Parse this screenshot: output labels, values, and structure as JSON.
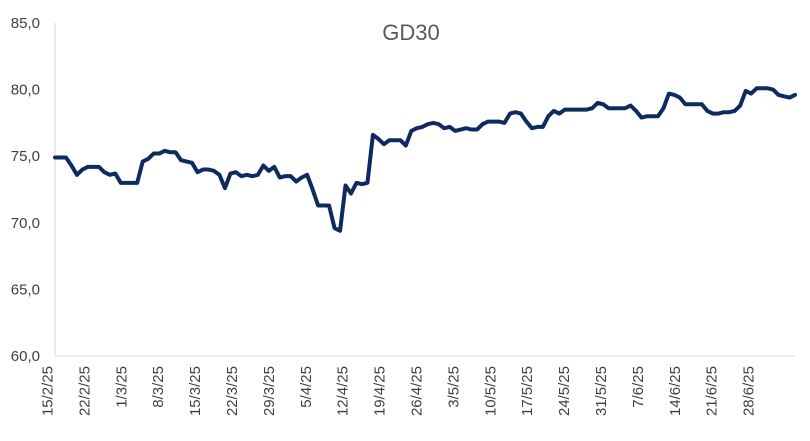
{
  "chart_data": {
    "type": "line",
    "title": "GD30",
    "xlabel": "",
    "ylabel": "",
    "ylim": [
      60,
      85
    ],
    "yticks": [
      "60,0",
      "65,0",
      "70,0",
      "75,0",
      "80,0",
      "85,0"
    ],
    "ytick_values": [
      60,
      65,
      70,
      75,
      80,
      85
    ],
    "xticks": [
      "15/2/25",
      "22/2/25",
      "1/3/25",
      "8/3/25",
      "15/3/25",
      "22/3/25",
      "29/3/25",
      "5/4/25",
      "12/4/25",
      "19/4/25",
      "26/4/25",
      "3/5/25",
      "10/5/25",
      "17/5/25",
      "24/5/25",
      "31/5/25",
      "7/6/25",
      "14/6/25",
      "21/6/25",
      "28/6/25"
    ],
    "grid": false,
    "color": "#0e2a5f",
    "series": [
      {
        "values": [
          74.9,
          74.9,
          74.9,
          74.3,
          73.6,
          74.0,
          74.2,
          74.2,
          74.2,
          73.8,
          73.6,
          73.7,
          73.0,
          73.0,
          73.0,
          73.0,
          74.6,
          74.8,
          75.2,
          75.2,
          75.4,
          75.3,
          75.3,
          74.7,
          74.6,
          74.5,
          73.8,
          74.0,
          74.0,
          73.9,
          73.6,
          72.6,
          73.7,
          73.8,
          73.5,
          73.6,
          73.5,
          73.6,
          74.3,
          73.9,
          74.2,
          73.4,
          73.5,
          73.5,
          73.1,
          73.4,
          73.6,
          72.5,
          71.3,
          71.3,
          71.3,
          69.6,
          69.4,
          72.8,
          72.2,
          73.0,
          72.9,
          73.0,
          76.6,
          76.3,
          75.9,
          76.2,
          76.2,
          76.2,
          75.8,
          76.9,
          77.1,
          77.2,
          77.4,
          77.5,
          77.4,
          77.1,
          77.2,
          76.9,
          77.0,
          77.1,
          77.0,
          77.0,
          77.4,
          77.6,
          77.6,
          77.6,
          77.5,
          78.2,
          78.3,
          78.2,
          77.6,
          77.1,
          77.2,
          77.2,
          78.0,
          78.4,
          78.2,
          78.5,
          78.5,
          78.5,
          78.5,
          78.5,
          78.6,
          79.0,
          78.9,
          78.6,
          78.6,
          78.6,
          78.6,
          78.8,
          78.4,
          77.9,
          78.0,
          78.0,
          78.0,
          78.6,
          79.7,
          79.6,
          79.4,
          78.9,
          78.9,
          78.9,
          78.9,
          78.4,
          78.2,
          78.2,
          78.3,
          78.3,
          78.4,
          78.8,
          79.9,
          79.7,
          80.1,
          80.1,
          80.1,
          80.0,
          79.6,
          79.5,
          79.4,
          79.6
        ]
      }
    ]
  }
}
